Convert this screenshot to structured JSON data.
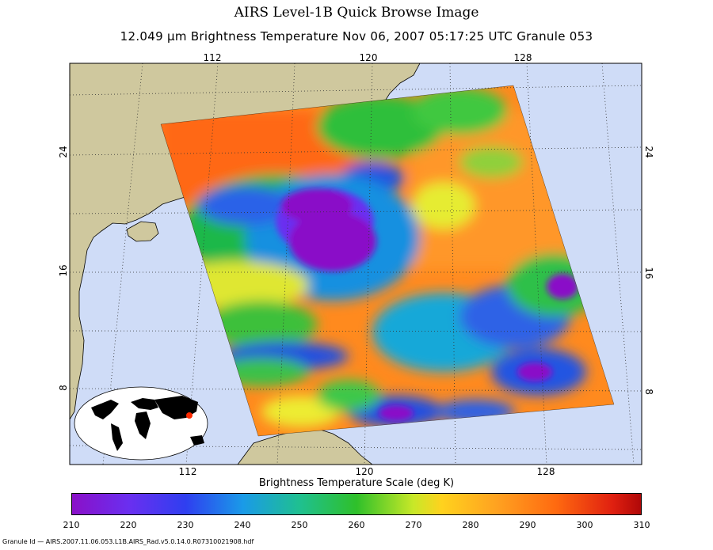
{
  "header": {
    "title": "AIRS Level-1B Quick Browse Image",
    "subtitle": "12.049 μm Brightness Temperature    Nov 06, 2007 05:17:25 UTC   Granule 053"
  },
  "map": {
    "top_longitude_labels": [
      "112",
      "120",
      "128"
    ],
    "bottom_longitude_labels": [
      "112",
      "120",
      "128"
    ],
    "left_latitude_labels": [
      "24",
      "16",
      "8"
    ],
    "right_latitude_labels": [
      "24",
      "16",
      "8"
    ],
    "colors": {
      "ocean": "#cfdcf7",
      "land": "#cfc89e",
      "storm_core": "#8a10c8",
      "swath_background": "#ff8a1e"
    }
  },
  "scale": {
    "title": "Brightness Temperature Scale (deg K)",
    "ticks": [
      "210",
      "220",
      "230",
      "240",
      "250",
      "260",
      "270",
      "280",
      "290",
      "300",
      "310"
    ],
    "min": 210,
    "max": 310
  },
  "footer": {
    "granule_id": "Granule Id — AIRS.2007.11.06.053.L1B.AIRS_Rad.v5.0.14.0.R07310021908.hdf"
  }
}
